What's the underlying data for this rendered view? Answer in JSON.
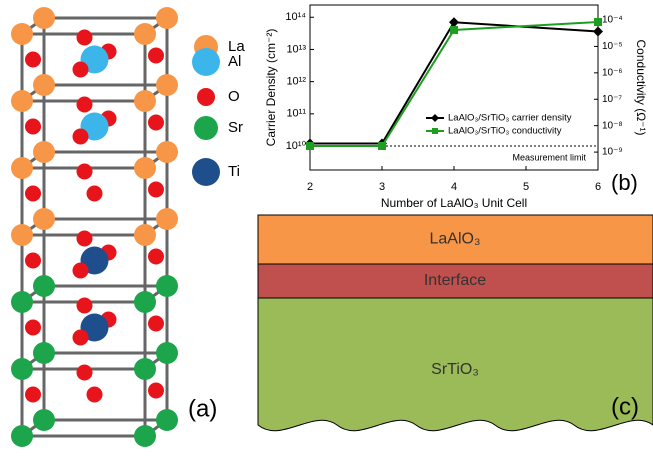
{
  "panel_a": {
    "legend": [
      {
        "label": "La",
        "color": "#f79646"
      },
      {
        "label": "Al",
        "color": "#3cb6ea"
      },
      {
        "label": "O",
        "color": "#e8141c"
      },
      {
        "label": "Sr",
        "color": "#1ca54b"
      },
      {
        "label": "Ti",
        "color": "#1f4e8c"
      }
    ],
    "panel_label": "(a)"
  },
  "chart_data": {
    "type": "line",
    "log_y": true,
    "x_label": "Number of LaAlO₃ Unit Cell",
    "y_label": "Carrier Density (cm⁻²)",
    "y2_label": "Conductivity (Ω⁻¹)",
    "panel_label": "(b)",
    "xlim": [
      2,
      6
    ],
    "xticks": [
      2,
      3,
      4,
      5,
      6
    ],
    "ylim": [
      1800000000.0,
      240000000000000.0
    ],
    "yticks": [
      {
        "value": 10000000000.0,
        "label": "10¹⁰"
      },
      {
        "value": 100000000000.0,
        "label": "10¹¹"
      },
      {
        "value": 1000000000000.0,
        "label": "10¹²"
      },
      {
        "value": 10000000000000.0,
        "label": "10¹³"
      },
      {
        "value": 100000000000000.0,
        "label": "10¹⁴"
      }
    ],
    "y2lim": [
      2.1e-10,
      0.00037
    ],
    "y2ticks": [
      {
        "value": 1e-09,
        "label": "10⁻⁹"
      },
      {
        "value": 1e-08,
        "label": "10⁻⁸"
      },
      {
        "value": 1e-07,
        "label": "10⁻⁷"
      },
      {
        "value": 1e-06,
        "label": "10⁻⁶"
      },
      {
        "value": 1e-05,
        "label": "10⁻⁵"
      },
      {
        "value": 0.0001,
        "label": "10⁻⁴"
      }
    ],
    "series": [
      {
        "name": "LaAlO₃/SrTiO₃ carrier density",
        "color": "#000000",
        "marker": "diamond",
        "x": [
          2,
          3,
          4,
          6
        ],
        "values": [
          12000000000.0,
          12000000000.0,
          70000000000000.0,
          36000000000000.0
        ]
      },
      {
        "name": "LaAlO₃/SrTiO₃ conductivity",
        "color": "#1e9e1e",
        "marker": "square",
        "axis": "y2",
        "x": [
          2,
          3,
          4,
          6
        ],
        "values": [
          1.7e-09,
          1.7e-09,
          4.2e-05,
          8.4e-05
        ]
      }
    ],
    "annotation": {
      "label": "Measurement limit",
      "value": 10000000000.0
    }
  },
  "panel_c": {
    "layers": [
      {
        "label": "LaAlO₃",
        "color": "#f79646"
      },
      {
        "label": "Interface",
        "color": "#c0504d"
      },
      {
        "label": "SrTiO₃",
        "color": "#9bbb59"
      }
    ],
    "panel_label": "(c)"
  }
}
